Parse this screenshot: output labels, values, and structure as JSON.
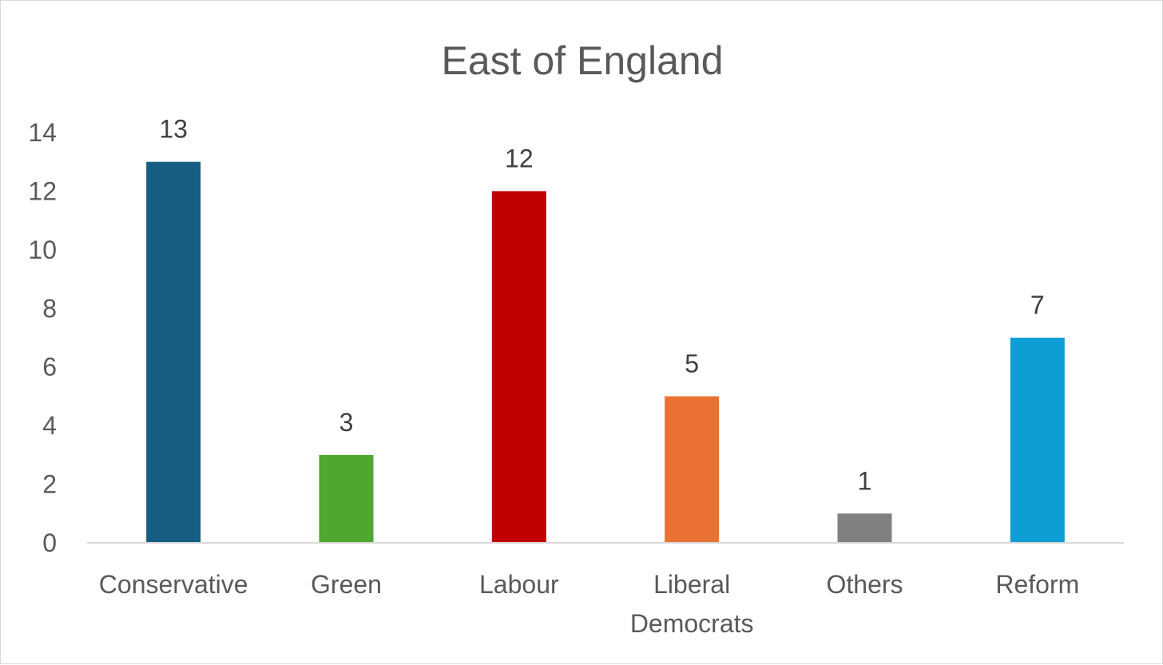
{
  "chart_data": {
    "type": "bar",
    "title": "East of England",
    "xlabel": "",
    "ylabel": "",
    "categories": [
      "Conservative",
      "Green",
      "Labour",
      "Liberal Democrats",
      "Others",
      "Reform"
    ],
    "category_lines": [
      [
        "Conservative"
      ],
      [
        "Green"
      ],
      [
        "Labour"
      ],
      [
        "Liberal",
        "Democrats"
      ],
      [
        "Others"
      ],
      [
        "Reform"
      ]
    ],
    "values": [
      13,
      3,
      12,
      5,
      1,
      7
    ],
    "colors": [
      "#175f82",
      "#4ea72e",
      "#c00000",
      "#e97132",
      "#808080",
      "#0e9ed5"
    ],
    "ylim": [
      0,
      14
    ],
    "yticks": [
      0,
      2,
      4,
      6,
      8,
      10,
      12,
      14
    ],
    "ytick_labels": [
      "0",
      "2",
      "4",
      "6",
      "8",
      "10",
      "12",
      "14"
    ],
    "data_labels": [
      "13",
      "3",
      "12",
      "5",
      "1",
      "7"
    ],
    "grid": false,
    "legend": "none"
  }
}
